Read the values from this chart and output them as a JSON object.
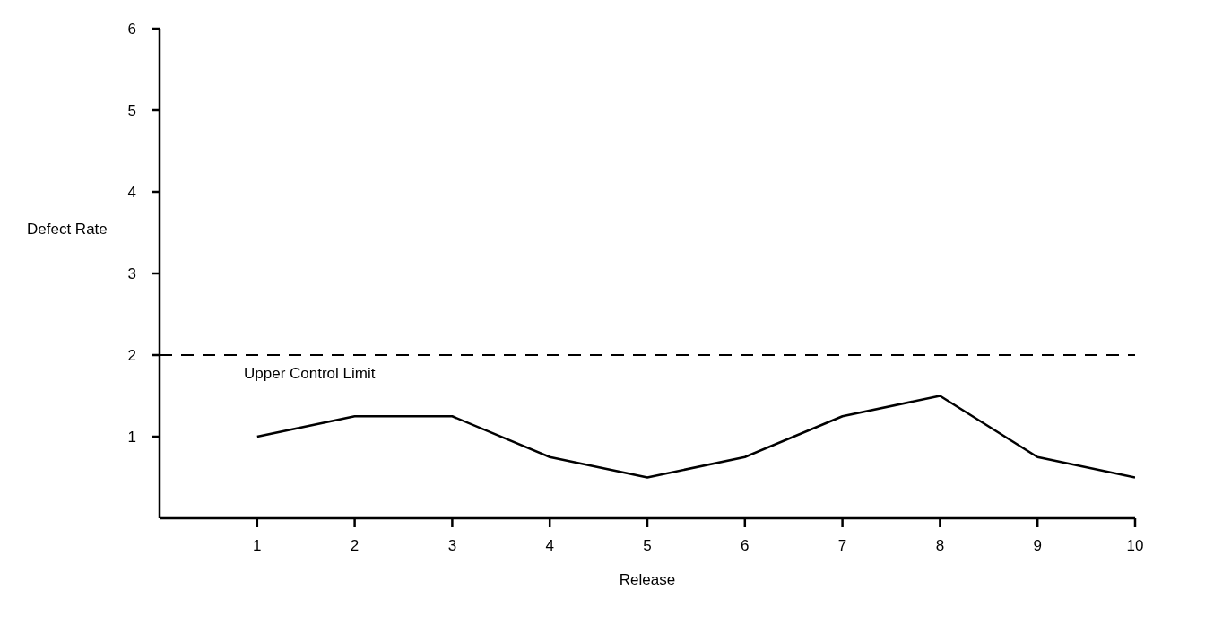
{
  "chart_data": {
    "type": "line",
    "xlabel": "Release",
    "ylabel": "Defect Rate",
    "x": [
      1,
      2,
      3,
      4,
      5,
      6,
      7,
      8,
      9,
      10
    ],
    "series": [
      {
        "color": "#000000",
        "values": [
          1,
          1.25,
          1.25,
          0.75,
          0.5,
          0.75,
          1.25,
          1.5,
          0.75,
          0.5
        ]
      }
    ],
    "xlim": [
      0,
      10
    ],
    "xticks": [
      1,
      2,
      3,
      4,
      5,
      6,
      7,
      8,
      9,
      10
    ],
    "ylim": [
      0,
      6
    ],
    "yticks": [
      1,
      2,
      3,
      4,
      5,
      6
    ],
    "ref_lines": [
      {
        "axis": "y",
        "value": 2,
        "label": "Upper Control Limit",
        "line_style": "dashed",
        "color": "#000000"
      }
    ],
    "grid": false,
    "legend": false,
    "marker": "none",
    "line_style": "solid"
  }
}
